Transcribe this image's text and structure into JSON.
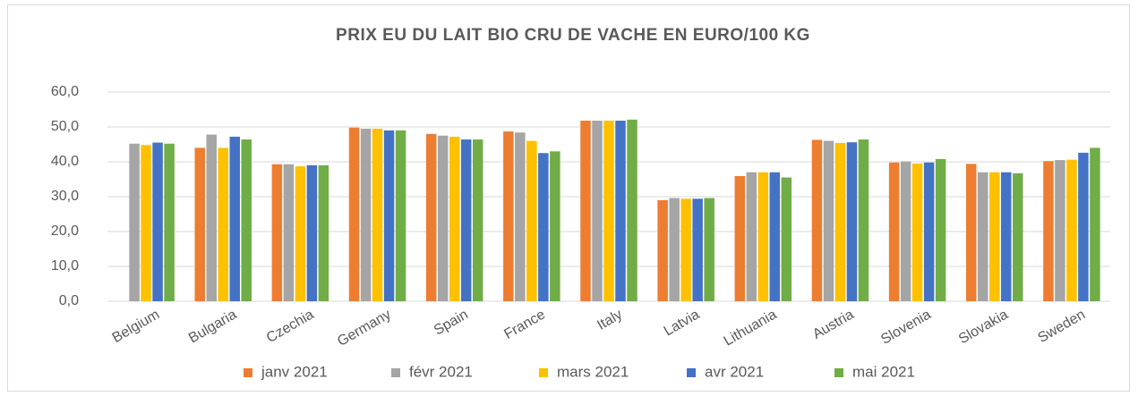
{
  "chart_data": {
    "type": "bar",
    "title": "PRIX EU DU LAIT BIO CRU DE VACHE EN EURO/100 KG",
    "categories": [
      "Belgium",
      "Bulgaria",
      "Czechia",
      "Germany",
      "Spain",
      "France",
      "Italy",
      "Latvia",
      "Lithuania",
      "Austria",
      "Slovenia",
      "Slovakia",
      "Sweden"
    ],
    "series": [
      {
        "name": "janv 2021",
        "color": "#ed7d31",
        "values": [
          null,
          44.0,
          39.3,
          49.8,
          48.0,
          48.7,
          51.8,
          29.0,
          35.9,
          46.3,
          39.8,
          39.4,
          40.2
        ]
      },
      {
        "name": "févr 2021",
        "color": "#a5a5a5",
        "values": [
          45.2,
          47.8,
          39.3,
          49.5,
          47.5,
          48.4,
          51.8,
          29.6,
          37.0,
          46.0,
          40.1,
          37.0,
          40.5
        ]
      },
      {
        "name": "mars 2021",
        "color": "#ffc000",
        "values": [
          44.8,
          44.0,
          38.7,
          49.5,
          47.2,
          46.0,
          51.8,
          29.4,
          37.0,
          45.4,
          39.5,
          37.0,
          40.6
        ]
      },
      {
        "name": "avr 2021",
        "color": "#4472c4",
        "values": [
          45.5,
          47.2,
          39.0,
          49.0,
          46.4,
          42.5,
          51.8,
          29.4,
          37.0,
          45.6,
          39.8,
          37.0,
          42.6
        ]
      },
      {
        "name": "mai 2021",
        "color": "#70ad47",
        "values": [
          45.2,
          46.4,
          39.0,
          49.0,
          46.4,
          43.0,
          52.1,
          29.6,
          35.5,
          46.4,
          40.8,
          36.7,
          44.0
        ]
      }
    ],
    "ylim": [
      0,
      60
    ],
    "yticks": [
      {
        "value": 0,
        "label": "0,0"
      },
      {
        "value": 10,
        "label": "10,0"
      },
      {
        "value": 20,
        "label": "20,0"
      },
      {
        "value": 30,
        "label": "30,0"
      },
      {
        "value": 40,
        "label": "40,0"
      },
      {
        "value": 50,
        "label": "50,0"
      },
      {
        "value": 60,
        "label": "60,0"
      }
    ],
    "grid": true,
    "legend": "bottom"
  }
}
